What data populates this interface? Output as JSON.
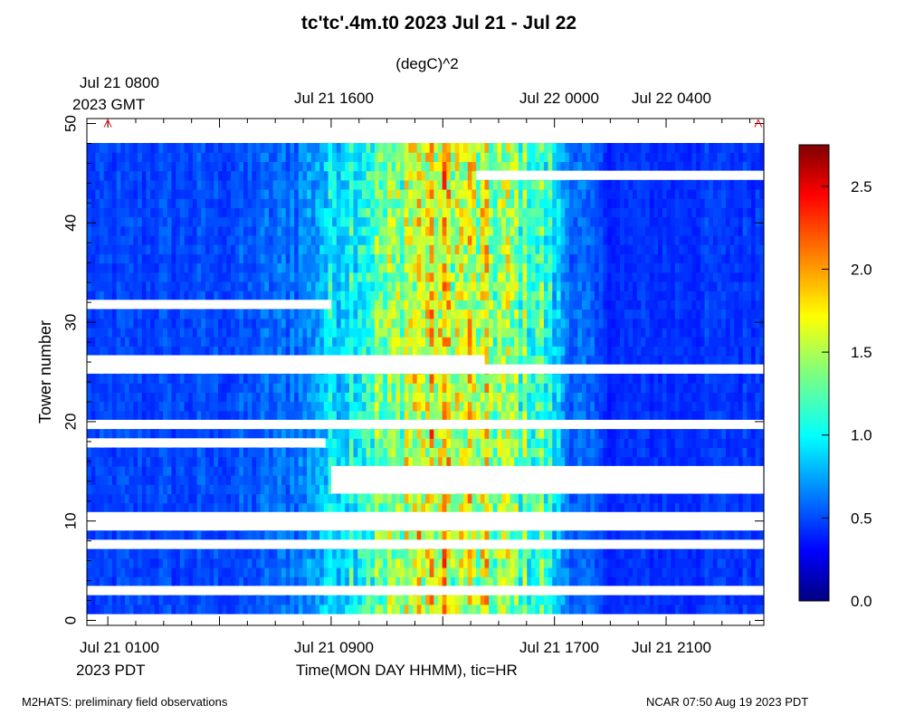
{
  "chart_data": {
    "type": "heatmap",
    "title": "tc'tc'.4m.t0 2023 Jul 21 - Jul 22",
    "colorbar_label": "(degC)^2",
    "xlabel": "Time(MON DAY HHMM), tic=HR",
    "ylabel": "Tower number",
    "x_range_pdt_hours": [
      0.25,
      24.5
    ],
    "ylim": [
      -0.5,
      50.5
    ],
    "grid": false,
    "colormap": "jet",
    "colorbar_range": [
      0.0,
      2.75
    ],
    "colorbar_ticks": [
      "0.0",
      "0.5",
      "1.0",
      "1.5",
      "2.0",
      "2.5"
    ],
    "bottom_axis": {
      "tick_labels": [
        "Jul 21 0100",
        "Jul 21 0900",
        "Jul 21 1700",
        "Jul 21 2100"
      ],
      "tick_hours": [
        1,
        9,
        17,
        21
      ],
      "timezone_label": "2023 PDT"
    },
    "top_axis": {
      "tick_labels": [
        "Jul 21 0800",
        "Jul 21 1600",
        "Jul 22 0000",
        "Jul 22 0400"
      ],
      "tick_hours": [
        1,
        9,
        17,
        21
      ],
      "timezone_label": "2023 GMT"
    },
    "y_ticks": [
      "0",
      "10",
      "20",
      "30",
      "40",
      "50"
    ],
    "y_tick_values": [
      0,
      10,
      20,
      30,
      40,
      50
    ],
    "diurnal_profile": {
      "description_hours": [
        0.25,
        6,
        8,
        9,
        10,
        12,
        14,
        15,
        16.5,
        17.5,
        19,
        24.5
      ],
      "approx_value": [
        0.25,
        0.3,
        0.45,
        0.75,
        1.0,
        1.3,
        1.4,
        1.25,
        1.05,
        0.45,
        0.2,
        0.25
      ]
    },
    "missing_data": [
      {
        "towers": [
          47,
          47
        ],
        "from_hour": 14.2,
        "to_hour": 24.5
      },
      {
        "towers": [
          33,
          33
        ],
        "from_hour": 0.25,
        "to_hour": 9.0
      },
      {
        "towers": [
          26,
          27
        ],
        "from_hour": 0.25,
        "to_hour": 14.5
      },
      {
        "towers": [
          26,
          26
        ],
        "from_hour": 14.5,
        "to_hour": 24.5
      },
      {
        "towers": [
          20,
          20
        ],
        "from_hour": 0.25,
        "to_hour": 24.5
      },
      {
        "towers": [
          18,
          18
        ],
        "from_hour": 0.25,
        "to_hour": 8.8
      },
      {
        "towers": [
          13,
          15
        ],
        "from_hour": 9.0,
        "to_hour": 24.5
      },
      {
        "towers": [
          9,
          10
        ],
        "from_hour": 0.25,
        "to_hour": 24.5
      },
      {
        "towers": [
          7,
          7
        ],
        "from_hour": 0.25,
        "to_hour": 24.5
      },
      {
        "towers": [
          2,
          2
        ],
        "from_hour": 0.25,
        "to_hour": 24.5
      }
    ],
    "markers": [
      {
        "shape": "caret",
        "color": "#ff0000",
        "tower": 50,
        "hour": 1.0
      },
      {
        "shape": "caret",
        "color": "#ff0000",
        "tower": 50,
        "hour": 24.3
      }
    ]
  },
  "footer": {
    "left": "M2HATS: preliminary field observations",
    "right": "NCAR 07:50 Aug 19 2023 PDT"
  }
}
